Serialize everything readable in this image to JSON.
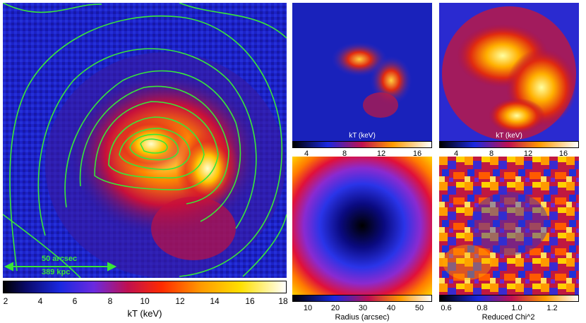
{
  "main_panel": {
    "scale_label_1": "50 arcsec",
    "scale_label_2": "389 kpc",
    "contour_color": "#39e639",
    "colorbar": {
      "label": "kT (keV)",
      "ticks": [
        "2",
        "4",
        "6",
        "8",
        "10",
        "12",
        "14",
        "16",
        "18"
      ],
      "colormap": "heat"
    }
  },
  "top_mid_panel": {
    "overlay_label": "kT (keV)",
    "colorbar": {
      "ticks": [
        "4",
        "8",
        "12",
        "16"
      ],
      "colormap": "heat"
    }
  },
  "top_right_panel": {
    "overlay_label": "kT (keV)",
    "colorbar": {
      "ticks": [
        "4",
        "8",
        "12",
        "16"
      ],
      "colormap": "heat"
    }
  },
  "bottom_mid_panel": {
    "colorbar": {
      "label": "Radius (arcsec)",
      "ticks": [
        "10",
        "20",
        "30",
        "40",
        "50"
      ],
      "colormap": "heat"
    }
  },
  "bottom_right_panel": {
    "colorbar": {
      "label": "Reduced Chi^2",
      "ticks": [
        "0.6",
        "0.8",
        "1.0",
        "1.2"
      ],
      "colormap": "heat"
    }
  }
}
